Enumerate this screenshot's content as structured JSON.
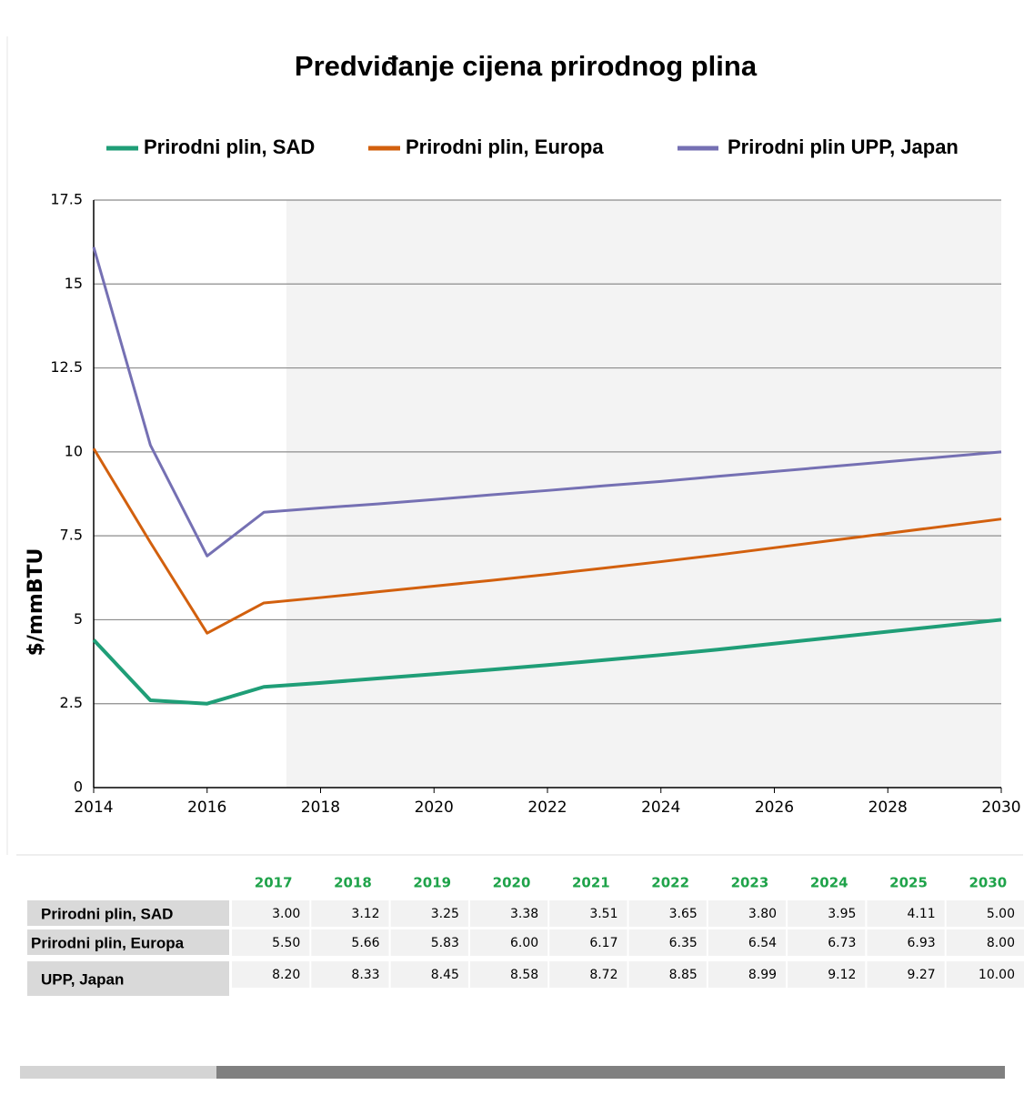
{
  "chart_data": {
    "type": "line",
    "title": "Predviđanje cijena prirodnog plina",
    "y_label": "$/mmBTU",
    "x": [
      2014,
      2015,
      2016,
      2017,
      2018,
      2019,
      2020,
      2021,
      2022,
      2023,
      2024,
      2025,
      2030
    ],
    "series": [
      {
        "name": "Prirodni plin, SAD",
        "color": "#1f9e77",
        "values": [
          4.4,
          2.6,
          2.5,
          3.0,
          3.12,
          3.25,
          3.38,
          3.51,
          3.65,
          3.8,
          3.95,
          4.11,
          5.0
        ]
      },
      {
        "name": "Prirodni plin, Europa",
        "color": "#d2600e",
        "values": [
          10.1,
          7.3,
          4.6,
          5.5,
          5.66,
          5.83,
          6.0,
          6.17,
          6.35,
          6.54,
          6.73,
          6.93,
          8.0
        ]
      },
      {
        "name": "Prirodni plin UPP, Japan",
        "color": "#7570b3",
        "values": [
          16.1,
          10.2,
          6.9,
          8.2,
          8.33,
          8.45,
          8.58,
          8.72,
          8.85,
          8.99,
          9.12,
          9.27,
          10.0
        ]
      }
    ],
    "xlim": [
      2014,
      2030
    ],
    "xticks": [
      2014,
      2016,
      2018,
      2020,
      2022,
      2024,
      2026,
      2028,
      2030
    ],
    "ylim": [
      0,
      17.5
    ],
    "yticks": [
      0,
      2.5,
      5,
      7.5,
      10,
      12.5,
      15,
      17.5
    ],
    "grid": true,
    "legend": "top"
  },
  "table": {
    "header": [
      "2017",
      "2018",
      "2019",
      "2020",
      "2021",
      "2022",
      "2023",
      "2024",
      "2025",
      "2030"
    ],
    "rows": [
      {
        "label": "Prirodni plin, SAD",
        "cells": [
          "3.00",
          "3.12",
          "3.25",
          "3.38",
          "3.51",
          "3.65",
          "3.80",
          "3.95",
          "4.11",
          "5.00"
        ]
      },
      {
        "label": "Prirodni plin, Europa",
        "cells": [
          "5.50",
          "5.66",
          "5.83",
          "6.00",
          "6.17",
          "6.35",
          "6.54",
          "6.73",
          "6.93",
          "8.00"
        ]
      },
      {
        "label": "UPP, Japan",
        "cells": [
          "8.20",
          "8.33",
          "8.45",
          "8.58",
          "8.72",
          "8.85",
          "8.99",
          "9.12",
          "9.27",
          "10.00"
        ]
      }
    ]
  }
}
